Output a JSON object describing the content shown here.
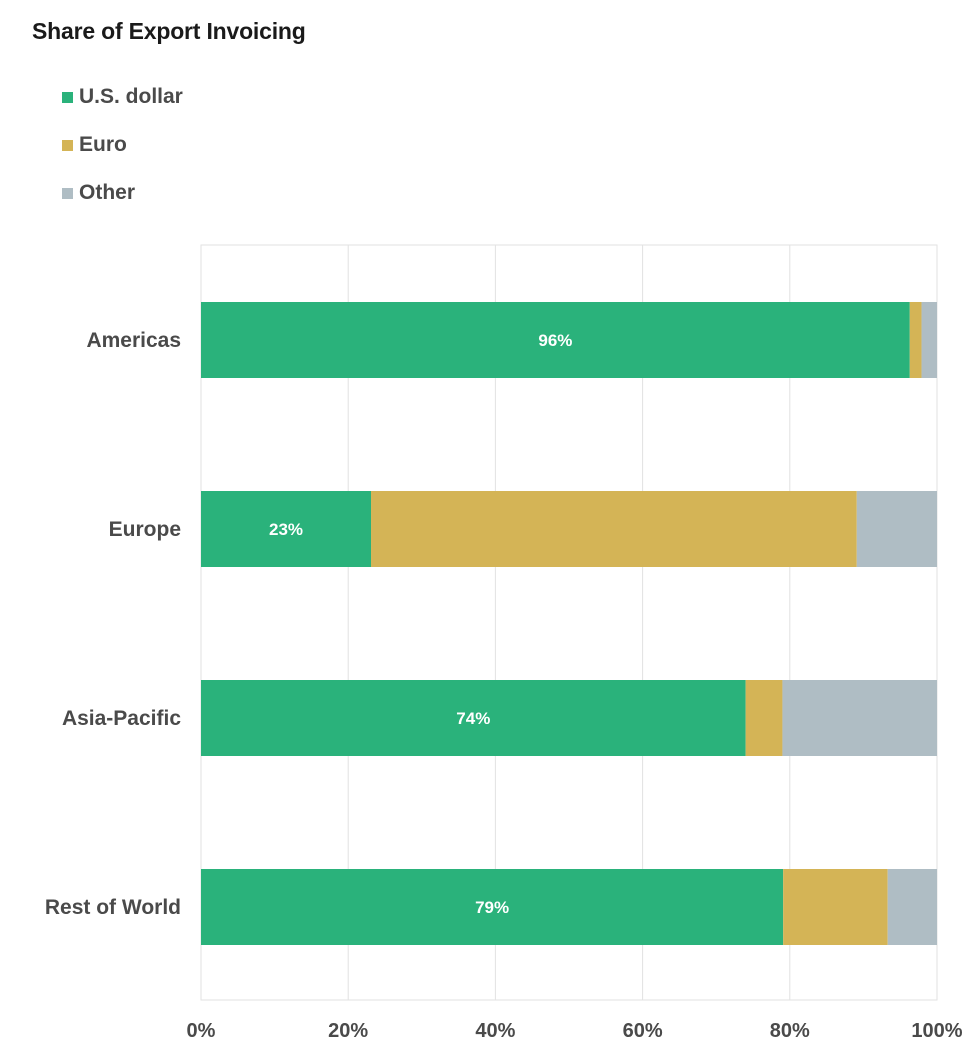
{
  "chart_data": {
    "type": "bar",
    "orientation": "horizontal",
    "stacked": true,
    "title": "Share of Export Invoicing",
    "categories": [
      "Americas",
      "Europe",
      "Asia-Pacific",
      "Rest of World"
    ],
    "series": [
      {
        "name": "U.S. dollar",
        "color": "#2ab27b",
        "values": [
          96.3,
          23.1,
          74.0,
          79.1
        ]
      },
      {
        "name": "Euro",
        "color": "#d4b456",
        "values": [
          1.6,
          66.0,
          5.0,
          14.2
        ]
      },
      {
        "name": "Other",
        "color": "#afbdc4",
        "values": [
          2.1,
          10.9,
          21.0,
          6.7
        ]
      }
    ],
    "data_labels": [
      "96%",
      "23%",
      "74%",
      "79%"
    ],
    "xlim": [
      0,
      100
    ],
    "xticks": [
      0,
      20,
      40,
      60,
      80,
      100
    ],
    "xtick_labels": [
      "0%",
      "20%",
      "40%",
      "60%",
      "80%",
      "100%"
    ],
    "xlabel": "",
    "ylabel": "",
    "grid": true,
    "legend_position": "top-left"
  }
}
